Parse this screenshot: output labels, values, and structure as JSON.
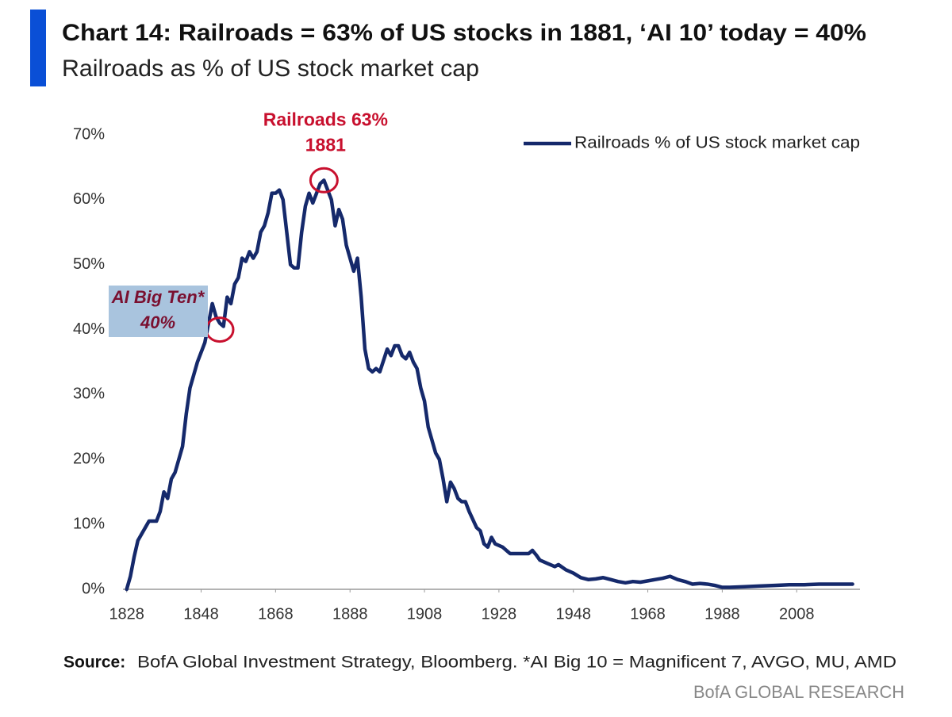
{
  "chart_data": {
    "type": "line",
    "title": "Chart 14: Railroads = 63% of US stocks in 1881, ‘AI 10’ today = 40%",
    "subtitle": "Railroads as % of US stock market cap",
    "x": [
      1828,
      1829,
      1830,
      1831,
      1832,
      1834,
      1836,
      1837,
      1838,
      1839,
      1840,
      1841,
      1843,
      1844,
      1845,
      1846,
      1847,
      1848,
      1849,
      1850,
      1851,
      1852,
      1853,
      1854,
      1855,
      1856,
      1857,
      1858,
      1859,
      1860,
      1861,
      1862,
      1863,
      1864,
      1865,
      1866,
      1867,
      1868,
      1869,
      1870,
      1871,
      1872,
      1873,
      1874,
      1875,
      1876,
      1877,
      1878,
      1879,
      1880,
      1881,
      1882,
      1883,
      1884,
      1885,
      1886,
      1887,
      1888,
      1889,
      1890,
      1891,
      1892,
      1893,
      1894,
      1895,
      1896,
      1898,
      1899,
      1900,
      1901,
      1902,
      1903,
      1904,
      1905,
      1906,
      1907,
      1908,
      1909,
      1911,
      1912,
      1913,
      1914,
      1915,
      1916,
      1917,
      1918,
      1919,
      1920,
      1922,
      1923,
      1924,
      1925,
      1926,
      1927,
      1929,
      1930,
      1931,
      1934,
      1936,
      1937,
      1938,
      1939,
      1941,
      1943,
      1944,
      1946,
      1948,
      1950,
      1952,
      1954,
      1956,
      1958,
      1960,
      1962,
      1964,
      1966,
      1968,
      1970,
      1972,
      1974,
      1976,
      1978,
      1980,
      1982,
      1984,
      1986,
      1988,
      1990,
      1994,
      1998,
      2002,
      2006,
      2010,
      2014,
      2018,
      2023
    ],
    "series": [
      {
        "name": "Railroads % of US stock market cap",
        "color": "#15296b",
        "values": [
          0,
          2,
          5,
          7.5,
          8.5,
          10.5,
          10.5,
          12,
          15,
          14,
          17,
          18,
          22,
          27,
          31,
          33,
          35,
          36.5,
          38,
          41,
          44,
          42,
          41,
          40.5,
          45,
          44,
          47,
          48,
          51,
          50.5,
          52,
          51,
          52,
          55,
          56,
          58,
          61,
          61,
          61.5,
          60,
          55,
          50,
          49.5,
          49.5,
          55,
          59,
          61,
          59.5,
          61,
          62.5,
          63,
          61.5,
          60,
          56,
          58.5,
          57,
          53,
          51,
          49,
          51,
          45,
          37,
          34,
          33.5,
          34,
          33.5,
          37,
          36,
          37.5,
          37.5,
          36,
          35.5,
          36.5,
          35,
          34,
          31,
          29,
          25,
          21,
          20,
          17,
          13.5,
          16.5,
          15.5,
          14,
          13.5,
          13.5,
          12,
          9.5,
          9,
          7,
          6.5,
          8,
          7,
          6.5,
          6,
          5.5,
          5.5,
          5.5,
          6,
          5.3,
          4.5,
          4,
          3.5,
          3.8,
          3,
          2.5,
          1.8,
          1.5,
          1.6,
          1.8,
          1.5,
          1.2,
          1,
          1.2,
          1.1,
          1.3,
          1.5,
          1.7,
          2,
          1.5,
          1.2,
          0.8,
          0.9,
          0.8,
          0.6,
          0.3,
          0.3,
          0.4,
          0.5,
          0.6,
          0.7,
          0.7,
          0.8,
          0.8,
          0.8
        ]
      }
    ],
    "xlim": [
      1827,
      2025
    ],
    "xticks": [
      1828,
      1848,
      1868,
      1888,
      1908,
      1928,
      1948,
      1968,
      1988,
      2008
    ],
    "ylim": [
      0,
      70
    ],
    "yticks": [
      {
        "value": 0,
        "label": "0%"
      },
      {
        "value": 10,
        "label": "10%"
      },
      {
        "value": 20,
        "label": "20%"
      },
      {
        "value": 30,
        "label": "30%"
      },
      {
        "value": 40,
        "label": "40%"
      },
      {
        "value": 50,
        "label": "50%"
      },
      {
        "value": 60,
        "label": "60%"
      },
      {
        "value": 70,
        "label": "70%"
      }
    ],
    "legend": "upper right",
    "annotations": [
      {
        "lines": [
          "Railroads 63%",
          "1881"
        ],
        "x": 1881,
        "y": 63,
        "color": "#c8102e"
      },
      {
        "lines": [
          "AI Big Ten*",
          "40%"
        ],
        "x": 1853,
        "y": 40,
        "color": "#7a1030",
        "background": "#a9c4de"
      }
    ]
  },
  "footer": {
    "source_label": "Source:",
    "source": "BofA Global Investment Strategy, Bloomberg. *AI Big 10 = Magnificent 7, AVGO, MU, AMD",
    "brand": "BofA GLOBAL RESEARCH"
  }
}
